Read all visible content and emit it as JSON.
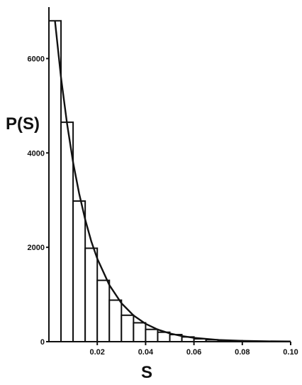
{
  "chart_data": {
    "type": "bar",
    "title": "",
    "xlabel": "S",
    "ylabel": "P(S)",
    "xlim": [
      0,
      0.1
    ],
    "ylim": [
      0,
      7000
    ],
    "grid": false,
    "x_ticks": [
      0.02,
      0.04,
      0.06,
      0.08,
      0.1
    ],
    "x_tick_labels": [
      "0.02",
      "0.04",
      "0.06",
      "0.08",
      "0.10"
    ],
    "y_ticks": [
      0,
      2000,
      4000,
      6000
    ],
    "y_tick_labels": [
      "0",
      "2000",
      "4000",
      "6000"
    ],
    "bin_width": 0.005,
    "bin_starts": [
      0,
      0.005,
      0.01,
      0.015,
      0.02,
      0.025,
      0.03,
      0.035,
      0.04,
      0.045,
      0.05,
      0.055,
      0.06,
      0.065,
      0.07,
      0.075,
      0.08
    ],
    "values": [
      6800,
      4650,
      2980,
      1980,
      1300,
      880,
      560,
      400,
      260,
      200,
      150,
      100,
      60,
      40,
      30,
      20,
      10
    ],
    "fit_curve": {
      "x": [
        0.0025,
        0.005,
        0.0075,
        0.01,
        0.0125,
        0.015,
        0.0175,
        0.02,
        0.025,
        0.03,
        0.035,
        0.04,
        0.045,
        0.05,
        0.055,
        0.06,
        0.07,
        0.08,
        0.09,
        0.1
      ],
      "y": [
        6800,
        5600,
        4620,
        3800,
        3140,
        2590,
        2130,
        1760,
        1200,
        815,
        555,
        378,
        257,
        175,
        119,
        81,
        37,
        17,
        8,
        4
      ]
    },
    "colors": {
      "bar_stroke": "#111111",
      "bar_fill": "#ffffff",
      "curve": "#111111"
    }
  }
}
